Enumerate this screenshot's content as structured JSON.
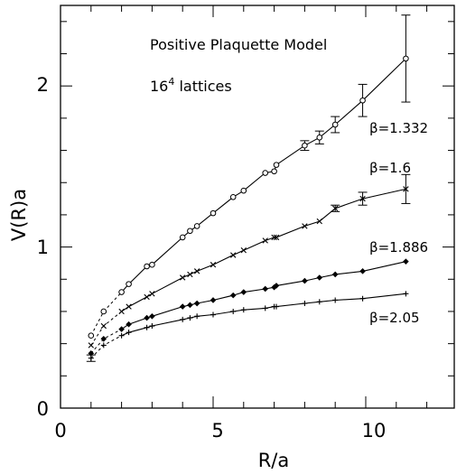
{
  "chart_data": {
    "type": "scatter",
    "xlabel": "R/a",
    "ylabel": "V(R)a",
    "xlim": [
      0,
      12.9
    ],
    "ylim": [
      0,
      2.5
    ],
    "x_ticks": [
      "0",
      "5",
      "10"
    ],
    "y_ticks": [
      "0",
      "1",
      "2"
    ],
    "annotations": {
      "line1": "Positive Plaquette Model",
      "line2_base": "16",
      "line2_sup": "4",
      "line2_rest": " lattices"
    },
    "series": [
      {
        "name": "β=1.332",
        "marker": "circle",
        "x": [
          1.0,
          1.414,
          2.0,
          2.236,
          2.828,
          3.0,
          4.0,
          4.243,
          4.472,
          5.0,
          5.657,
          6.0,
          6.708,
          7.0,
          7.071,
          8.0,
          8.485,
          9.0,
          9.899,
          11.314
        ],
        "y": [
          0.45,
          0.6,
          0.72,
          0.77,
          0.88,
          0.89,
          1.06,
          1.1,
          1.13,
          1.21,
          1.31,
          1.35,
          1.46,
          1.47,
          1.51,
          1.63,
          1.68,
          1.76,
          1.91,
          2.17
        ],
        "err": [
          0,
          0,
          0,
          0,
          0,
          0,
          0,
          0,
          0,
          0,
          0,
          0,
          0,
          0,
          0,
          0.03,
          0.04,
          0.05,
          0.1,
          0.27
        ],
        "fit": "solid"
      },
      {
        "name": "β=1.6",
        "marker": "cross",
        "x": [
          1.0,
          1.414,
          2.0,
          2.236,
          2.828,
          3.0,
          4.0,
          4.243,
          4.472,
          5.0,
          5.657,
          6.0,
          6.708,
          7.0,
          7.071,
          8.0,
          8.485,
          9.0,
          9.899,
          11.314
        ],
        "y": [
          0.39,
          0.51,
          0.6,
          0.63,
          0.69,
          0.71,
          0.81,
          0.83,
          0.85,
          0.89,
          0.95,
          0.98,
          1.04,
          1.06,
          1.06,
          1.13,
          1.16,
          1.24,
          1.3,
          1.36
        ],
        "err": [
          0,
          0,
          0,
          0,
          0,
          0,
          0,
          0,
          0,
          0,
          0,
          0,
          0,
          0,
          0,
          0,
          0,
          0.02,
          0.04,
          0.09
        ],
        "fit": "solid"
      },
      {
        "name": "β=1.886",
        "marker": "diamond",
        "x": [
          1.0,
          1.414,
          2.0,
          2.236,
          2.828,
          3.0,
          4.0,
          4.243,
          4.472,
          5.0,
          5.657,
          6.0,
          6.708,
          7.0,
          7.071,
          8.0,
          8.485,
          9.0,
          9.899,
          11.314
        ],
        "y": [
          0.34,
          0.43,
          0.49,
          0.52,
          0.56,
          0.57,
          0.63,
          0.64,
          0.65,
          0.67,
          0.7,
          0.72,
          0.74,
          0.75,
          0.76,
          0.79,
          0.81,
          0.83,
          0.85,
          0.91
        ],
        "err": [
          0,
          0,
          0,
          0,
          0,
          0,
          0,
          0,
          0,
          0,
          0,
          0,
          0,
          0,
          0,
          0,
          0,
          0,
          0,
          0
        ],
        "fit": "solid"
      },
      {
        "name": "β=2.05",
        "marker": "plus",
        "x": [
          1.0,
          1.414,
          2.0,
          2.236,
          2.828,
          3.0,
          4.0,
          4.243,
          4.472,
          5.0,
          5.657,
          6.0,
          6.708,
          7.0,
          7.071,
          8.0,
          8.485,
          9.0,
          9.899,
          11.314
        ],
        "y": [
          0.31,
          0.39,
          0.45,
          0.47,
          0.5,
          0.51,
          0.55,
          0.56,
          0.57,
          0.58,
          0.6,
          0.61,
          0.62,
          0.63,
          0.63,
          0.65,
          0.66,
          0.67,
          0.68,
          0.71
        ],
        "err": [
          0.02,
          0,
          0,
          0,
          0,
          0,
          0,
          0,
          0,
          0,
          0,
          0,
          0,
          0,
          0,
          0,
          0,
          0,
          0,
          0
        ],
        "fit": "solid"
      }
    ]
  }
}
